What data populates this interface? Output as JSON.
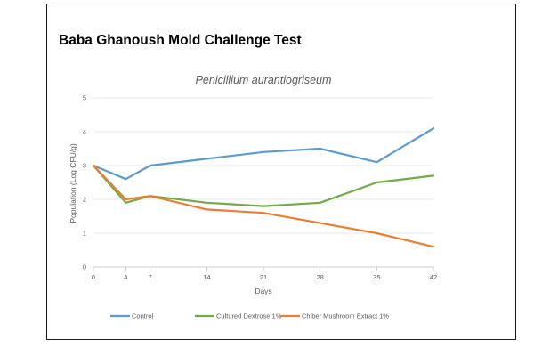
{
  "heading": "Baba Ghanoush Mold Challenge Test",
  "colors": {
    "Control": "#5b9bd5",
    "Cultured Dextrose 1%": "#70ad47",
    "Chiber Mushroom Extract 1%": "#ed7d31"
  },
  "chart_data": {
    "type": "line",
    "title": "Penicillium aurantiogriseum",
    "xlabel": "Days",
    "ylabel": "Population (Log CFU/g)",
    "x": [
      0,
      4,
      7,
      14,
      21,
      28,
      35,
      42
    ],
    "x_tick_labels": [
      "0",
      "4",
      "7",
      "14",
      "21",
      "28",
      "35",
      "42"
    ],
    "ylim": [
      0,
      5
    ],
    "y_ticks": [
      0,
      1,
      2,
      3,
      4,
      5
    ],
    "grid": "horizontal",
    "legend": "bottom",
    "series": [
      {
        "name": "Control",
        "values": [
          3.0,
          2.6,
          3.0,
          3.2,
          3.4,
          3.5,
          3.1,
          4.1
        ]
      },
      {
        "name": "Cultured Dextrose 1%",
        "values": [
          3.0,
          1.9,
          2.1,
          1.9,
          1.8,
          1.9,
          2.5,
          2.7
        ]
      },
      {
        "name": "Chiber Mushroom Extract 1%",
        "values": [
          3.0,
          2.0,
          2.1,
          1.7,
          1.6,
          1.3,
          1.0,
          0.6
        ]
      }
    ]
  }
}
